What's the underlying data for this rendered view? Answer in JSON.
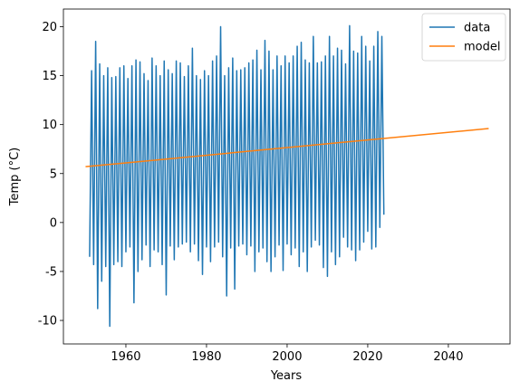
{
  "chart_data": {
    "type": "line",
    "xlabel": "Years",
    "ylabel": "Temp (°C)",
    "xlim": [
      1944.5,
      2055.3
    ],
    "xticks": [
      1960,
      1980,
      2000,
      2020,
      2040
    ],
    "ylim": [
      -12.4,
      21.8
    ],
    "yticks": [
      -10,
      -5,
      0,
      5,
      10,
      15,
      20
    ],
    "legend": "upper right",
    "series": [
      {
        "name": "data",
        "color": "#1f77b4",
        "x": [
          1951,
          1951.5,
          1952,
          1952.5,
          1953,
          1953.5,
          1954,
          1954.5,
          1955,
          1955.5,
          1956,
          1956.5,
          1957,
          1957.5,
          1958,
          1958.5,
          1959,
          1959.5,
          1960,
          1960.5,
          1961,
          1961.5,
          1962,
          1962.5,
          1963,
          1963.5,
          1964,
          1964.5,
          1965,
          1965.5,
          1966,
          1966.5,
          1967,
          1967.5,
          1968,
          1968.5,
          1969,
          1969.5,
          1970,
          1970.5,
          1971,
          1971.5,
          1972,
          1972.5,
          1973,
          1973.5,
          1974,
          1974.5,
          1975,
          1975.5,
          1976,
          1976.5,
          1977,
          1977.5,
          1978,
          1978.5,
          1979,
          1979.5,
          1980,
          1980.5,
          1981,
          1981.5,
          1982,
          1982.5,
          1983,
          1983.5,
          1984,
          1984.5,
          1985,
          1985.5,
          1986,
          1986.5,
          1987,
          1987.5,
          1988,
          1988.5,
          1989,
          1989.5,
          1990,
          1990.5,
          1991,
          1991.5,
          1992,
          1992.5,
          1993,
          1993.5,
          1994,
          1994.5,
          1995,
          1995.5,
          1996,
          1996.5,
          1997,
          1997.5,
          1998,
          1998.5,
          1999,
          1999.5,
          2000,
          2000.5,
          2001,
          2001.5,
          2002,
          2002.5,
          2003,
          2003.5,
          2004,
          2004.5,
          2005,
          2005.5,
          2006,
          2006.5,
          2007,
          2007.5,
          2008,
          2008.5,
          2009,
          2009.5,
          2010,
          2010.5,
          2011,
          2011.5,
          2012,
          2012.5,
          2013,
          2013.5,
          2014,
          2014.5,
          2015,
          2015.5,
          2016,
          2016.5,
          2017,
          2017.5,
          2018,
          2018.5,
          2019,
          2019.5,
          2020,
          2020.5,
          2021,
          2021.5,
          2022,
          2022.5,
          2023,
          2023.5,
          2024
        ],
        "values": [
          -3.5,
          15.5,
          -4.3,
          18.5,
          -8.8,
          16.2,
          -6.0,
          15.0,
          -4.5,
          15.8,
          -10.6,
          14.8,
          -4.3,
          14.9,
          -4.0,
          15.8,
          -4.5,
          16.0,
          -3.0,
          14.7,
          -2.5,
          16.0,
          -8.2,
          16.6,
          -5.0,
          16.4,
          -3.8,
          15.2,
          -2.3,
          14.5,
          -4.5,
          16.8,
          -2.8,
          16.0,
          -3.0,
          15.0,
          -4.3,
          16.5,
          -7.4,
          15.6,
          -2.4,
          15.2,
          -3.8,
          16.5,
          -2.5,
          16.3,
          -2.2,
          14.9,
          -2.0,
          16.0,
          -3.0,
          17.8,
          -2.2,
          15.0,
          -3.9,
          14.6,
          -5.3,
          15.5,
          -2.5,
          15.0,
          -4.0,
          16.5,
          -2.5,
          17.0,
          -2.0,
          20.0,
          -3.5,
          15.0,
          -7.5,
          15.8,
          -2.6,
          16.8,
          -6.8,
          15.5,
          -2.4,
          15.6,
          -2.2,
          15.8,
          -3.3,
          16.3,
          -2.4,
          16.6,
          -5.0,
          17.6,
          -3.0,
          15.6,
          -2.6,
          18.6,
          -4.0,
          17.5,
          -5.0,
          15.6,
          -3.5,
          17.0,
          -2.3,
          16.0,
          -4.9,
          17.0,
          -2.2,
          16.3,
          -3.3,
          17.0,
          -2.6,
          18.0,
          -4.5,
          18.4,
          -3.0,
          16.6,
          -5.0,
          16.3,
          -2.5,
          19.0,
          -1.8,
          16.3,
          -2.3,
          16.4,
          -4.6,
          17.0,
          -5.5,
          19.0,
          -3.0,
          17.0,
          -4.3,
          17.8,
          -3.5,
          17.6,
          -1.5,
          16.2,
          -2.5,
          20.1,
          -2.8,
          17.5,
          -3.9,
          17.3,
          -2.8,
          19.0,
          -2.0,
          18.0,
          -0.9,
          16.5,
          -2.7,
          18.0,
          -2.5,
          19.5,
          -0.5,
          19.0,
          0.8
        ]
      },
      {
        "name": "model",
        "color": "#ff7f0e",
        "x": [
          1950,
          2050
        ],
        "values": [
          5.7,
          9.6
        ]
      }
    ]
  }
}
